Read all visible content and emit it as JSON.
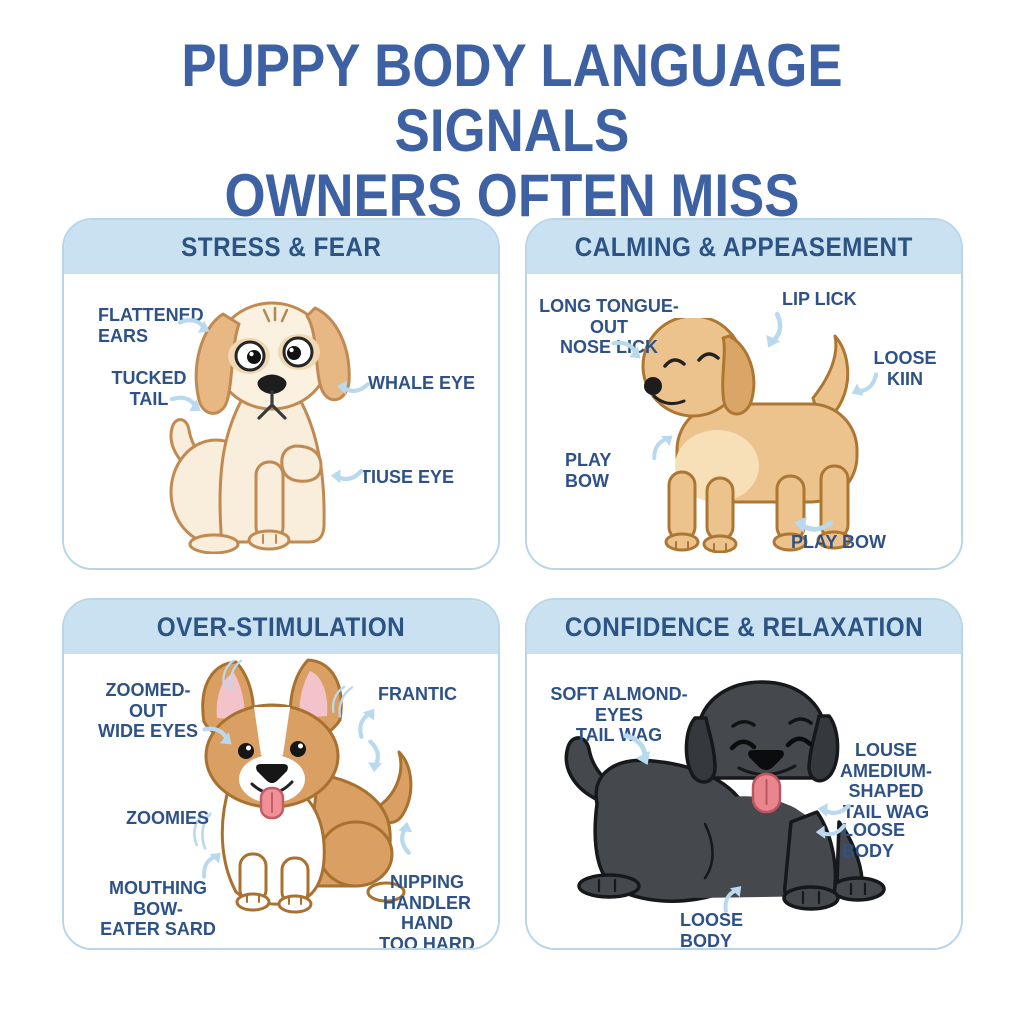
{
  "title": {
    "line1": "PUPPY BODY LANGUAGE SIGNALS",
    "line2": "OWNERS OFTEN MISS"
  },
  "colors": {
    "title_blue": "#3d61a3",
    "header_text_blue": "#2b5384",
    "label_text_blue": "#2e5287",
    "panel_border_blue": "#b7d6ea",
    "header_band_blue": "#c9e1f1",
    "arrow_light_blue": "#b9d9ee"
  },
  "icons": {
    "arrow": "curved-pointer-arrow",
    "motion": "motion-arcs"
  },
  "panels": [
    {
      "header": "STRESS & FEAR",
      "illustration": "worried cream puppy sitting with wide eyes and floppy tan ears",
      "labels": [
        {
          "lines": [
            "FLATTENED",
            "EARS"
          ]
        },
        {
          "lines": [
            "TUCKED",
            "TAIL"
          ]
        },
        {
          "lines": [
            "WHALE EYE"
          ]
        },
        {
          "lines": [
            "TIUSE EYE"
          ]
        }
      ]
    },
    {
      "header": "CALMING & APPEASEMENT",
      "illustration": "golden puppy standing with closed happy eyes and raised tail",
      "labels": [
        {
          "lines": [
            "LONG TONGUE-OUT",
            "NOSE LICK"
          ]
        },
        {
          "lines": [
            "LIP LICK"
          ]
        },
        {
          "lines": [
            "LOOSE",
            "KIIN"
          ]
        },
        {
          "lines": [
            "PLAY BOW"
          ]
        },
        {
          "lines": [
            "PLAY BOW"
          ]
        }
      ]
    },
    {
      "header": "OVER-STIMULATION",
      "illustration": "excited corgi with big upright ears, tongue out and motion lines",
      "labels": [
        {
          "lines": [
            "ZOOMED-OUT",
            "WIDE EYES"
          ]
        },
        {
          "lines": [
            "FRANTIC"
          ]
        },
        {
          "lines": [
            "ZOOMIES"
          ]
        },
        {
          "lines": [
            "MOUTHING BOW-",
            "EATER SARD"
          ]
        },
        {
          "lines": [
            "NIPPING",
            "HANDLER HAND",
            "TOO HARD"
          ]
        }
      ]
    },
    {
      "header": "CONFIDENCE & RELAXATION",
      "illustration": "relaxed black dog lying down with closed eyes and tongue out",
      "labels": [
        {
          "lines": [
            "SOFT ALMOND-EYES",
            "TAIL WAG"
          ]
        },
        {
          "lines": [
            "LOUSE",
            "AMEDIUM-SHAPED",
            "TAIL WAG"
          ]
        },
        {
          "lines": [
            "LOOSE BODY"
          ]
        },
        {
          "lines": [
            "LOOSE BODY"
          ]
        }
      ]
    }
  ]
}
